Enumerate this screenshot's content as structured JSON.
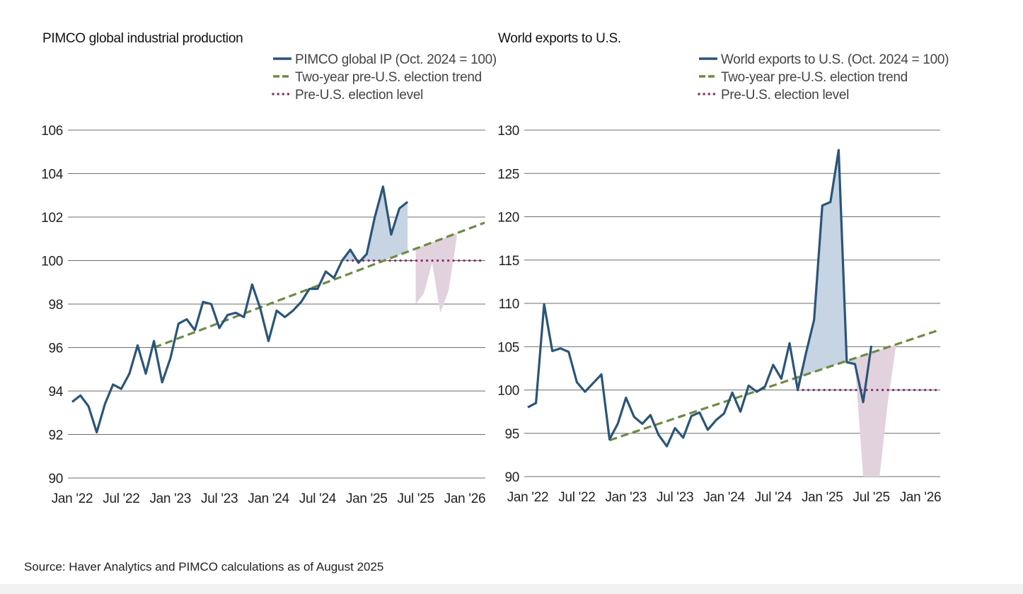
{
  "source": "Source: Haver Analytics and PIMCO calculations as of August 2025",
  "colors": {
    "series": "#2b5578",
    "trend": "#6d8b45",
    "level": "#8b2f6f",
    "above_fill": "#c6d4e3",
    "below_fill": "#e2d2de",
    "grid": "#6e6e6e"
  },
  "chart_data": [
    {
      "type": "line",
      "title": "PIMCO global industrial production",
      "x_ticks": [
        "Jan '22",
        "Jul '22",
        "Jan '23",
        "Jul '23",
        "Jan '24",
        "Jul '24",
        "Jan '25",
        "Jul '25",
        "Jan '26"
      ],
      "ylim": [
        90,
        106
      ],
      "y_ticks": [
        "106",
        "104",
        "102",
        "100",
        "98",
        "96",
        "94",
        "92",
        "90"
      ],
      "grid": true,
      "legend": "top-right",
      "series": [
        {
          "name": "PIMCO global IP (Oct. 2024 = 100)",
          "style": "solid",
          "x": [
            "2022-01",
            "2022-02",
            "2022-03",
            "2022-04",
            "2022-05",
            "2022-06",
            "2022-07",
            "2022-08",
            "2022-09",
            "2022-10",
            "2022-11",
            "2022-12",
            "2023-01",
            "2023-02",
            "2023-03",
            "2023-04",
            "2023-05",
            "2023-06",
            "2023-07",
            "2023-08",
            "2023-09",
            "2023-10",
            "2023-11",
            "2023-12",
            "2024-01",
            "2024-02",
            "2024-03",
            "2024-04",
            "2024-05",
            "2024-06",
            "2024-07",
            "2024-08",
            "2024-09",
            "2024-10",
            "2024-11",
            "2024-12",
            "2025-01",
            "2025-02",
            "2025-03",
            "2025-04",
            "2025-05",
            "2025-06",
            "2025-07"
          ],
          "values": [
            93.5,
            93.8,
            93.3,
            92.1,
            93.4,
            94.3,
            94.1,
            94.8,
            96.1,
            94.8,
            96.3,
            94.4,
            95.5,
            97.1,
            97.3,
            96.8,
            98.1,
            98.0,
            96.9,
            97.5,
            97.6,
            97.4,
            98.9,
            97.8,
            96.3,
            97.7,
            97.4,
            97.7,
            98.1,
            98.7,
            98.7,
            99.5,
            99.2,
            100.0,
            100.5,
            99.9,
            100.3,
            102.0,
            103.4,
            101.2,
            102.4,
            102.7,
            null
          ]
        },
        {
          "name": "Two-year pre-U.S. election trend",
          "style": "dashed",
          "x": [
            "2022-11",
            "2026-01"
          ],
          "values": [
            96.0,
            101.4
          ]
        },
        {
          "name": "Pre-U.S. election level",
          "style": "dotted",
          "x": [
            "2024-10",
            "2026-01"
          ],
          "values": [
            100.0,
            100.0
          ]
        }
      ],
      "shortfall": {
        "x": [
          "2025-07",
          "2025-08",
          "2025-09",
          "2025-10",
          "2025-11",
          "2025-12"
        ],
        "values": [
          98.0,
          98.5,
          99.9,
          97.6,
          98.6,
          101.0
        ]
      }
    },
    {
      "type": "line",
      "title": "World exports to U.S.",
      "x_ticks": [
        "Jan '22",
        "Jul '22",
        "Jan '23",
        "Jul '23",
        "Jan '24",
        "Jul '24",
        "Jan '25",
        "Jul '25",
        "Jan '26"
      ],
      "ylim": [
        90,
        130
      ],
      "y_ticks": [
        "130",
        "125",
        "120",
        "115",
        "110",
        "105",
        "100",
        "95",
        "90"
      ],
      "grid": true,
      "legend": "top-right",
      "series": [
        {
          "name": "World exports to U.S. (Oct. 2024 = 100)",
          "style": "solid",
          "x": [
            "2022-01",
            "2022-02",
            "2022-03",
            "2022-04",
            "2022-05",
            "2022-06",
            "2022-07",
            "2022-08",
            "2022-09",
            "2022-10",
            "2022-11",
            "2022-12",
            "2023-01",
            "2023-02",
            "2023-03",
            "2023-04",
            "2023-05",
            "2023-06",
            "2023-07",
            "2023-08",
            "2023-09",
            "2023-10",
            "2023-11",
            "2023-12",
            "2024-01",
            "2024-02",
            "2024-03",
            "2024-04",
            "2024-05",
            "2024-06",
            "2024-07",
            "2024-08",
            "2024-09",
            "2024-10",
            "2024-11",
            "2024-12",
            "2025-01",
            "2025-02",
            "2025-03",
            "2025-04",
            "2025-05",
            "2025-06",
            "2025-07",
            "2025-08"
          ],
          "values": [
            98.0,
            98.5,
            109.9,
            104.5,
            104.8,
            104.4,
            100.9,
            99.8,
            100.8,
            101.8,
            94.3,
            96.1,
            99.1,
            96.9,
            96.1,
            97.1,
            94.8,
            93.5,
            95.6,
            94.5,
            97.0,
            97.4,
            95.4,
            96.5,
            97.3,
            99.7,
            97.5,
            100.5,
            99.8,
            100.4,
            102.9,
            101.3,
            105.4,
            100.0,
            104.2,
            108.1,
            121.3,
            121.7,
            127.7,
            103.2,
            103.0,
            98.6,
            105.1,
            null
          ]
        },
        {
          "name": "Two-year pre-U.S. election trend",
          "style": "dashed",
          "x": [
            "2022-11",
            "2026-01"
          ],
          "values": [
            94.2,
            106.2
          ]
        },
        {
          "name": "Pre-U.S. election level",
          "style": "dotted",
          "x": [
            "2024-10",
            "2026-01"
          ],
          "values": [
            100.0,
            100.0
          ]
        }
      ],
      "shortfall": {
        "x": [
          "2025-05",
          "2025-06",
          "2025-07",
          "2025-08",
          "2025-09",
          "2025-10"
        ],
        "values": [
          103.0,
          90.0,
          90.0,
          90.0,
          98.5,
          105.0
        ]
      }
    }
  ]
}
